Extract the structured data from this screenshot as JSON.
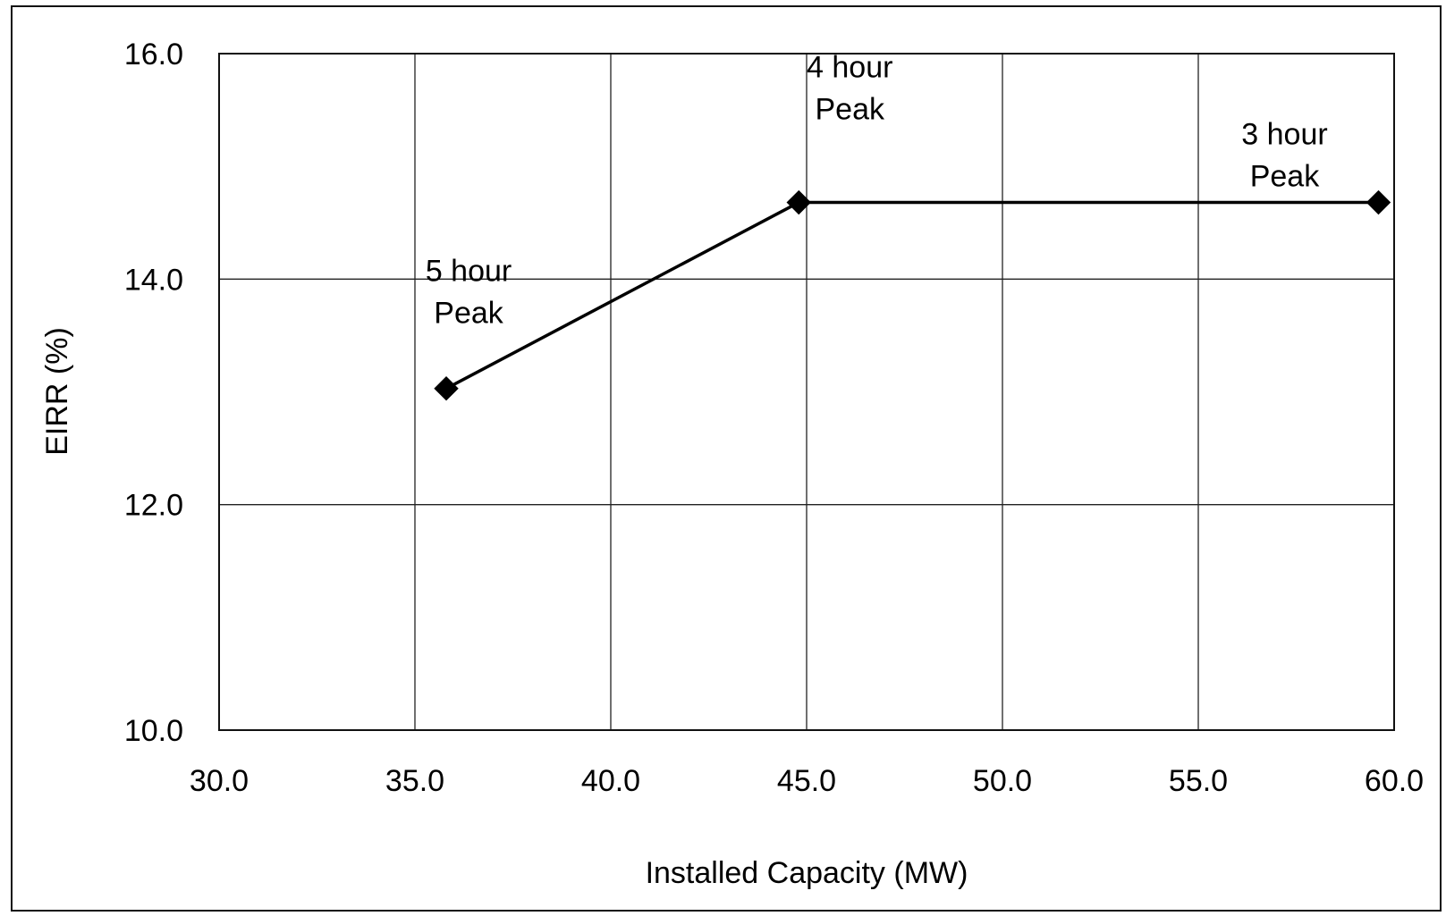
{
  "chart_data": {
    "type": "line",
    "title": "",
    "xlabel": "Installed Capacity (MW)",
    "ylabel": "EIRR (%)",
    "xlim": [
      30.0,
      60.0
    ],
    "ylim": [
      10.0,
      16.0
    ],
    "x_ticks": [
      "30.0",
      "35.0",
      "40.0",
      "45.0",
      "50.0",
      "55.0",
      "60.0"
    ],
    "y_ticks": [
      "10.0",
      "12.0",
      "14.0",
      "16.0"
    ],
    "grid": true,
    "legend": "none",
    "series": [
      {
        "color": "#000000",
        "marker": "diamond",
        "points": [
          {
            "x": 35.8,
            "y": 13.03,
            "label": [
              "5 hour",
              "Peak"
            ]
          },
          {
            "x": 44.8,
            "y": 14.68,
            "label": [
              "4 hour",
              "Peak"
            ]
          },
          {
            "x": 59.6,
            "y": 14.68,
            "label": [
              "3 hour",
              "Peak"
            ]
          }
        ]
      }
    ]
  }
}
